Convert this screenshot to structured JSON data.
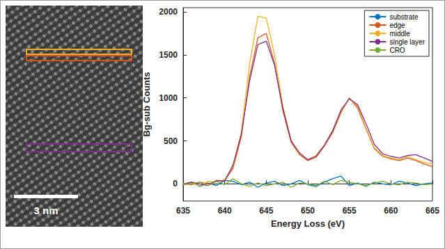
{
  "chart_data": {
    "type": "line",
    "x_label": "Energy Loss (eV)",
    "y_label": "Bg-sub Counts",
    "x": [
      635,
      636,
      637,
      638,
      639,
      640,
      641,
      642,
      643,
      644,
      645,
      646,
      647,
      648,
      649,
      650,
      651,
      652,
      653,
      654,
      655,
      656,
      657,
      658,
      659,
      660,
      661,
      662,
      663,
      664,
      665
    ],
    "xlim": [
      635,
      665
    ],
    "xticks": [
      635,
      640,
      645,
      650,
      655,
      660,
      665
    ],
    "ylim": [
      -200,
      2050
    ],
    "yticks": [
      0,
      500,
      1000,
      1500,
      2000
    ],
    "grid": false,
    "legend": "upper right",
    "series": [
      {
        "name": "substrate",
        "color": "#0072bd",
        "values": [
          0,
          20,
          -30,
          10,
          -20,
          40,
          30,
          -10,
          20,
          -40,
          10,
          30,
          -20,
          0,
          40,
          -10,
          -30,
          20,
          60,
          90,
          -20,
          10,
          -30,
          20,
          0,
          -10,
          30,
          10,
          -20,
          0,
          10
        ]
      },
      {
        "name": "edge",
        "color": "#d95319",
        "values": [
          10,
          -10,
          20,
          0,
          30,
          40,
          180,
          550,
          1250,
          1700,
          1750,
          1400,
          850,
          480,
          340,
          270,
          310,
          440,
          600,
          830,
          1000,
          880,
          640,
          410,
          320,
          290,
          270,
          300,
          270,
          230,
          200
        ]
      },
      {
        "name": "middle",
        "color": "#edb120",
        "values": [
          0,
          10,
          -20,
          30,
          20,
          50,
          200,
          600,
          1400,
          1950,
          1930,
          1500,
          900,
          500,
          350,
          280,
          330,
          450,
          620,
          850,
          990,
          900,
          650,
          420,
          330,
          300,
          280,
          320,
          280,
          250,
          230
        ]
      },
      {
        "name": "single layer",
        "color": "#7e2f8e",
        "values": [
          -10,
          20,
          0,
          -20,
          40,
          30,
          220,
          580,
          1200,
          1620,
          1660,
          1380,
          880,
          500,
          360,
          280,
          320,
          450,
          620,
          860,
          990,
          920,
          700,
          460,
          350,
          320,
          300,
          330,
          340,
          300,
          260
        ]
      },
      {
        "name": "CRO",
        "color": "#77ac30",
        "values": [
          -10,
          0,
          20,
          -20,
          30,
          -10,
          60,
          0,
          -30,
          10,
          -20,
          0,
          20,
          -40,
          10,
          0,
          -20,
          30,
          -10,
          40,
          20,
          0,
          -20,
          10,
          30,
          0,
          -10,
          20,
          10,
          -10,
          0
        ]
      }
    ]
  },
  "micrograph": {
    "scale_bar": "3 nm"
  }
}
